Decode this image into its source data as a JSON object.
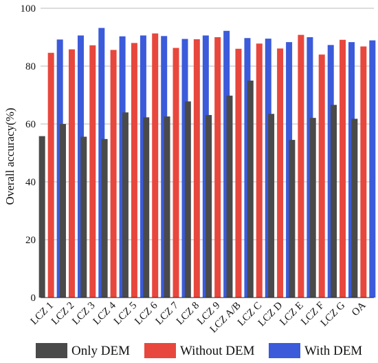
{
  "chart_data": {
    "type": "bar",
    "title": "",
    "xlabel": "",
    "ylabel": "Overall accuracy(%)",
    "ylim": [
      0,
      100
    ],
    "yticks": [
      0,
      20,
      40,
      60,
      80,
      100
    ],
    "grid": "horizontal",
    "legend_position": "bottom",
    "categories": [
      "LCZ 1",
      "LCZ 2",
      "LCZ 3",
      "LCZ 4",
      "LCZ 5",
      "LCZ 6",
      "LCZ 7",
      "LCZ 8",
      "LCZ 9",
      "LCZ A/B",
      "LCZ C",
      "LCZ D",
      "LCZ E",
      "LCZ F",
      "LCZ G",
      "OA"
    ],
    "series": [
      {
        "name": "Only DEM",
        "color": "#4a4a4a",
        "values": [
          55.8,
          60,
          55.6,
          54.8,
          64,
          62.3,
          62.6,
          67.8,
          63.1,
          69.8,
          75,
          63.5,
          54.5,
          62.1,
          66.6,
          61.8
        ]
      },
      {
        "name": "Without DEM",
        "color": "#e8473d",
        "values": [
          84.6,
          85.8,
          87.2,
          85.6,
          88,
          91.3,
          86.3,
          89.3,
          90,
          86,
          87.8,
          86.1,
          90.8,
          84,
          89.1,
          86.8
        ]
      },
      {
        "name": "With DEM",
        "color": "#3b5bdb",
        "values": [
          89.2,
          90.6,
          93.2,
          90.3,
          90.6,
          90.4,
          89.4,
          90.6,
          92.2,
          89.7,
          89.5,
          88.3,
          90,
          87.3,
          88.3,
          88.9
        ]
      }
    ]
  }
}
